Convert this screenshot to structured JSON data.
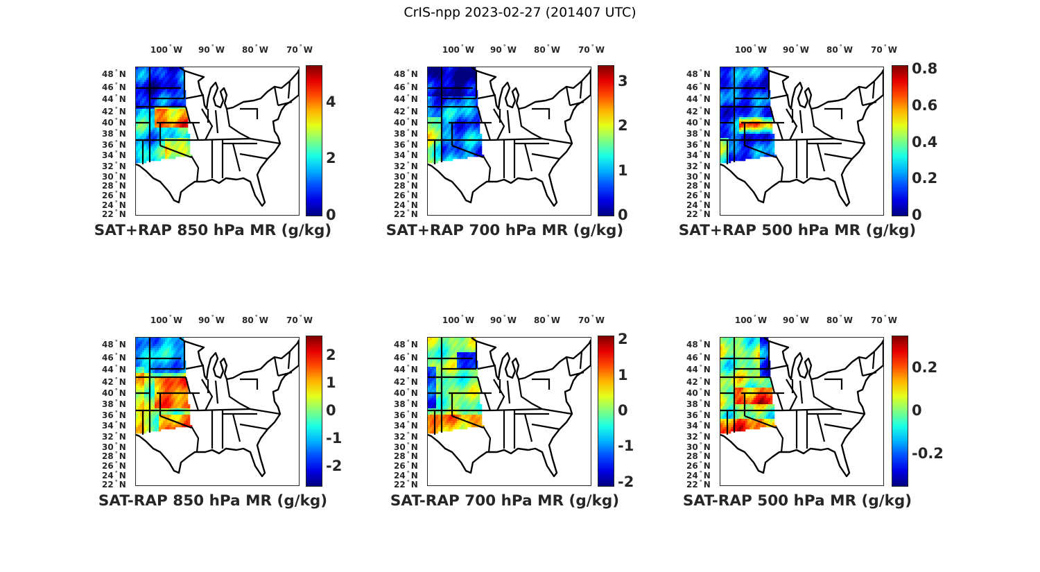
{
  "figure_title": "CrIS-npp 2023-02-27 (201407 UTC)",
  "lon_ticks": [
    "100",
    "90",
    "80",
    "70"
  ],
  "lon_hemisphere": "W",
  "lat_ticks": [
    "48",
    "46",
    "44",
    "42",
    "40",
    "38",
    "36",
    "34",
    "32",
    "30",
    "28",
    "26",
    "24",
    "22"
  ],
  "lat_hemisphere": "N",
  "degree_symbol": "°",
  "panels": [
    {
      "title": "SAT+RAP 850 hPa MR (g/kg)",
      "colorbar": {
        "min": 0,
        "max": 5.3,
        "ticks": [
          "0",
          "2",
          "4"
        ],
        "tick_values": [
          0,
          2,
          4
        ]
      }
    },
    {
      "title": "SAT+RAP 700 hPa MR (g/kg)",
      "colorbar": {
        "min": 0,
        "max": 3.35,
        "ticks": [
          "0",
          "1",
          "2",
          "3"
        ],
        "tick_values": [
          0,
          1,
          2,
          3
        ]
      }
    },
    {
      "title": "SAT+RAP 500 hPa MR (g/kg)",
      "colorbar": {
        "min": 0,
        "max": 0.82,
        "ticks": [
          "0",
          "0.2",
          "0.4",
          "0.6",
          "0.8"
        ],
        "tick_values": [
          0,
          0.2,
          0.4,
          0.6,
          0.8
        ]
      }
    },
    {
      "title": "SAT-RAP 850 hPa MR (g/kg)",
      "colorbar": {
        "min": -2.7,
        "max": 2.7,
        "ticks": [
          "-2",
          "-1",
          "0",
          "1",
          "2"
        ],
        "tick_values": [
          -2,
          -1,
          0,
          1,
          2
        ]
      }
    },
    {
      "title": "SAT-RAP 700 hPa MR (g/kg)",
      "colorbar": {
        "min": -2.1,
        "max": 2.1,
        "ticks": [
          "-2",
          "-1",
          "0",
          "1",
          "2"
        ],
        "tick_values": [
          -2,
          -1,
          0,
          1,
          2
        ]
      }
    },
    {
      "title": "SAT-RAP 500 hPa MR (g/kg)",
      "colorbar": {
        "min": -0.35,
        "max": 0.35,
        "ticks": [
          "-0.2",
          "0",
          "0.2"
        ],
        "tick_values": [
          -0.2,
          0,
          0.2
        ]
      }
    }
  ]
}
